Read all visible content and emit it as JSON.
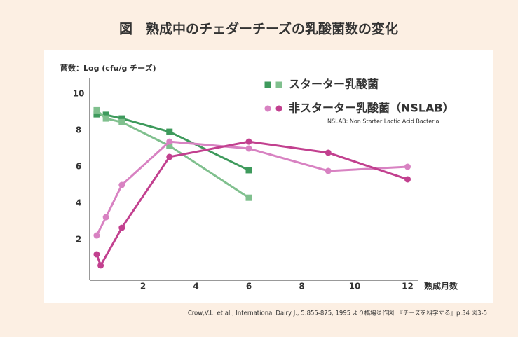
{
  "chart_data": {
    "type": "line",
    "title": "図　熟成中のチェダーチーズの乳酸菌数の変化",
    "y_label": "菌数：Log (cfu/g チーズ)",
    "x_label": "熟成月数",
    "xlim": [
      0,
      12.3
    ],
    "ylim": [
      -0.25,
      10.6
    ],
    "xticks": [
      2,
      4,
      6,
      8,
      10,
      12
    ],
    "yticks": [
      2,
      4,
      6,
      8,
      10
    ],
    "series": [
      {
        "color": "#3e9a5c",
        "marker": "square",
        "x": [
          0.25,
          0.6,
          1.2,
          3,
          6
        ],
        "values": [
          8.88,
          8.85,
          8.65,
          7.92,
          5.81
        ]
      },
      {
        "color": "#80c08e",
        "marker": "square",
        "x": [
          0.25,
          0.6,
          1.2,
          3,
          6
        ],
        "values": [
          9.1,
          8.65,
          8.45,
          7.15,
          4.3
        ]
      },
      {
        "color": "#d882c2",
        "marker": "circle",
        "x": [
          0.25,
          0.6,
          1.2,
          3,
          6,
          9,
          12
        ],
        "values": [
          2.23,
          3.23,
          5.0,
          7.38,
          7.0,
          5.77,
          6.0
        ]
      },
      {
        "color": "#c2408f",
        "marker": "circle",
        "x": [
          0.25,
          0.4,
          1.2,
          3,
          6,
          9,
          12
        ],
        "values": [
          1.19,
          0.58,
          2.65,
          6.54,
          7.38,
          6.77,
          5.31
        ]
      }
    ],
    "legend": [
      {
        "label": "スターター乳酸菌",
        "marker": "square",
        "colors": [
          "#3e9a5c",
          "#80c08e"
        ]
      },
      {
        "label": "非スターター乳酸菌（NSLAB）",
        "marker": "circle",
        "colors": [
          "#d882c2",
          "#c2408f"
        ]
      }
    ],
    "legend_note": "NSLAB: Non Starter Lactic Acid Bacteria",
    "source": "Crow,V.L. et al., International Dairy J., 5:855-875, 1995 より橋場炎作図　『チーズを科学する』p.34 図3-5"
  }
}
